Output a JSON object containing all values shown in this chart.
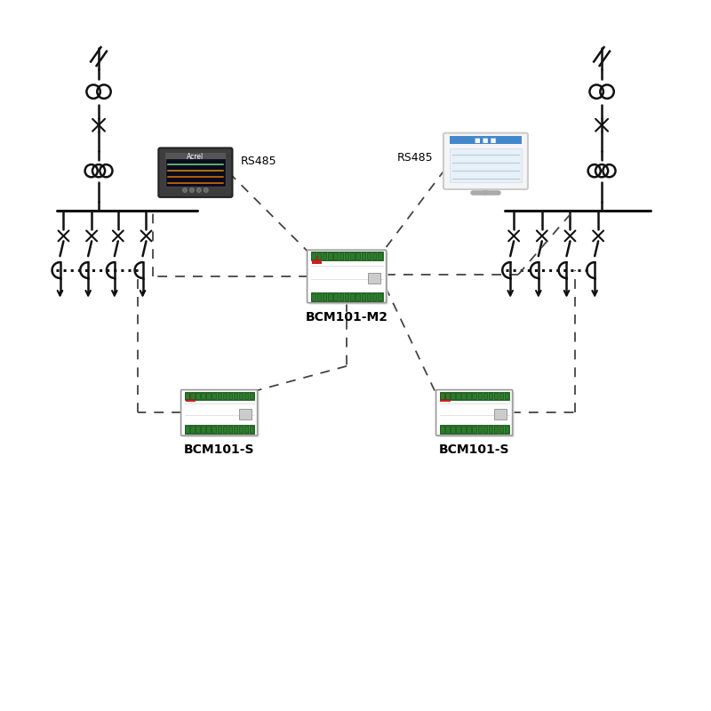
{
  "bg_color": "#ffffff",
  "line_color": "#111111",
  "dashed_color": "#555555",
  "green_terminal": "#3a8a3a",
  "green_dark": "#2a6a2a",
  "screen_bg": "#e8f0f8",
  "screen_header": "#4488cc",
  "label_bcm_m2": "BCM101-M2",
  "label_bcm_s1": "BCM101-S",
  "label_bcm_s2": "BCM101-S",
  "label_rs485_left": "RS485",
  "label_rs485_right": "RS485",
  "figsize": [
    8.0,
    8.0
  ],
  "dpi": 100
}
